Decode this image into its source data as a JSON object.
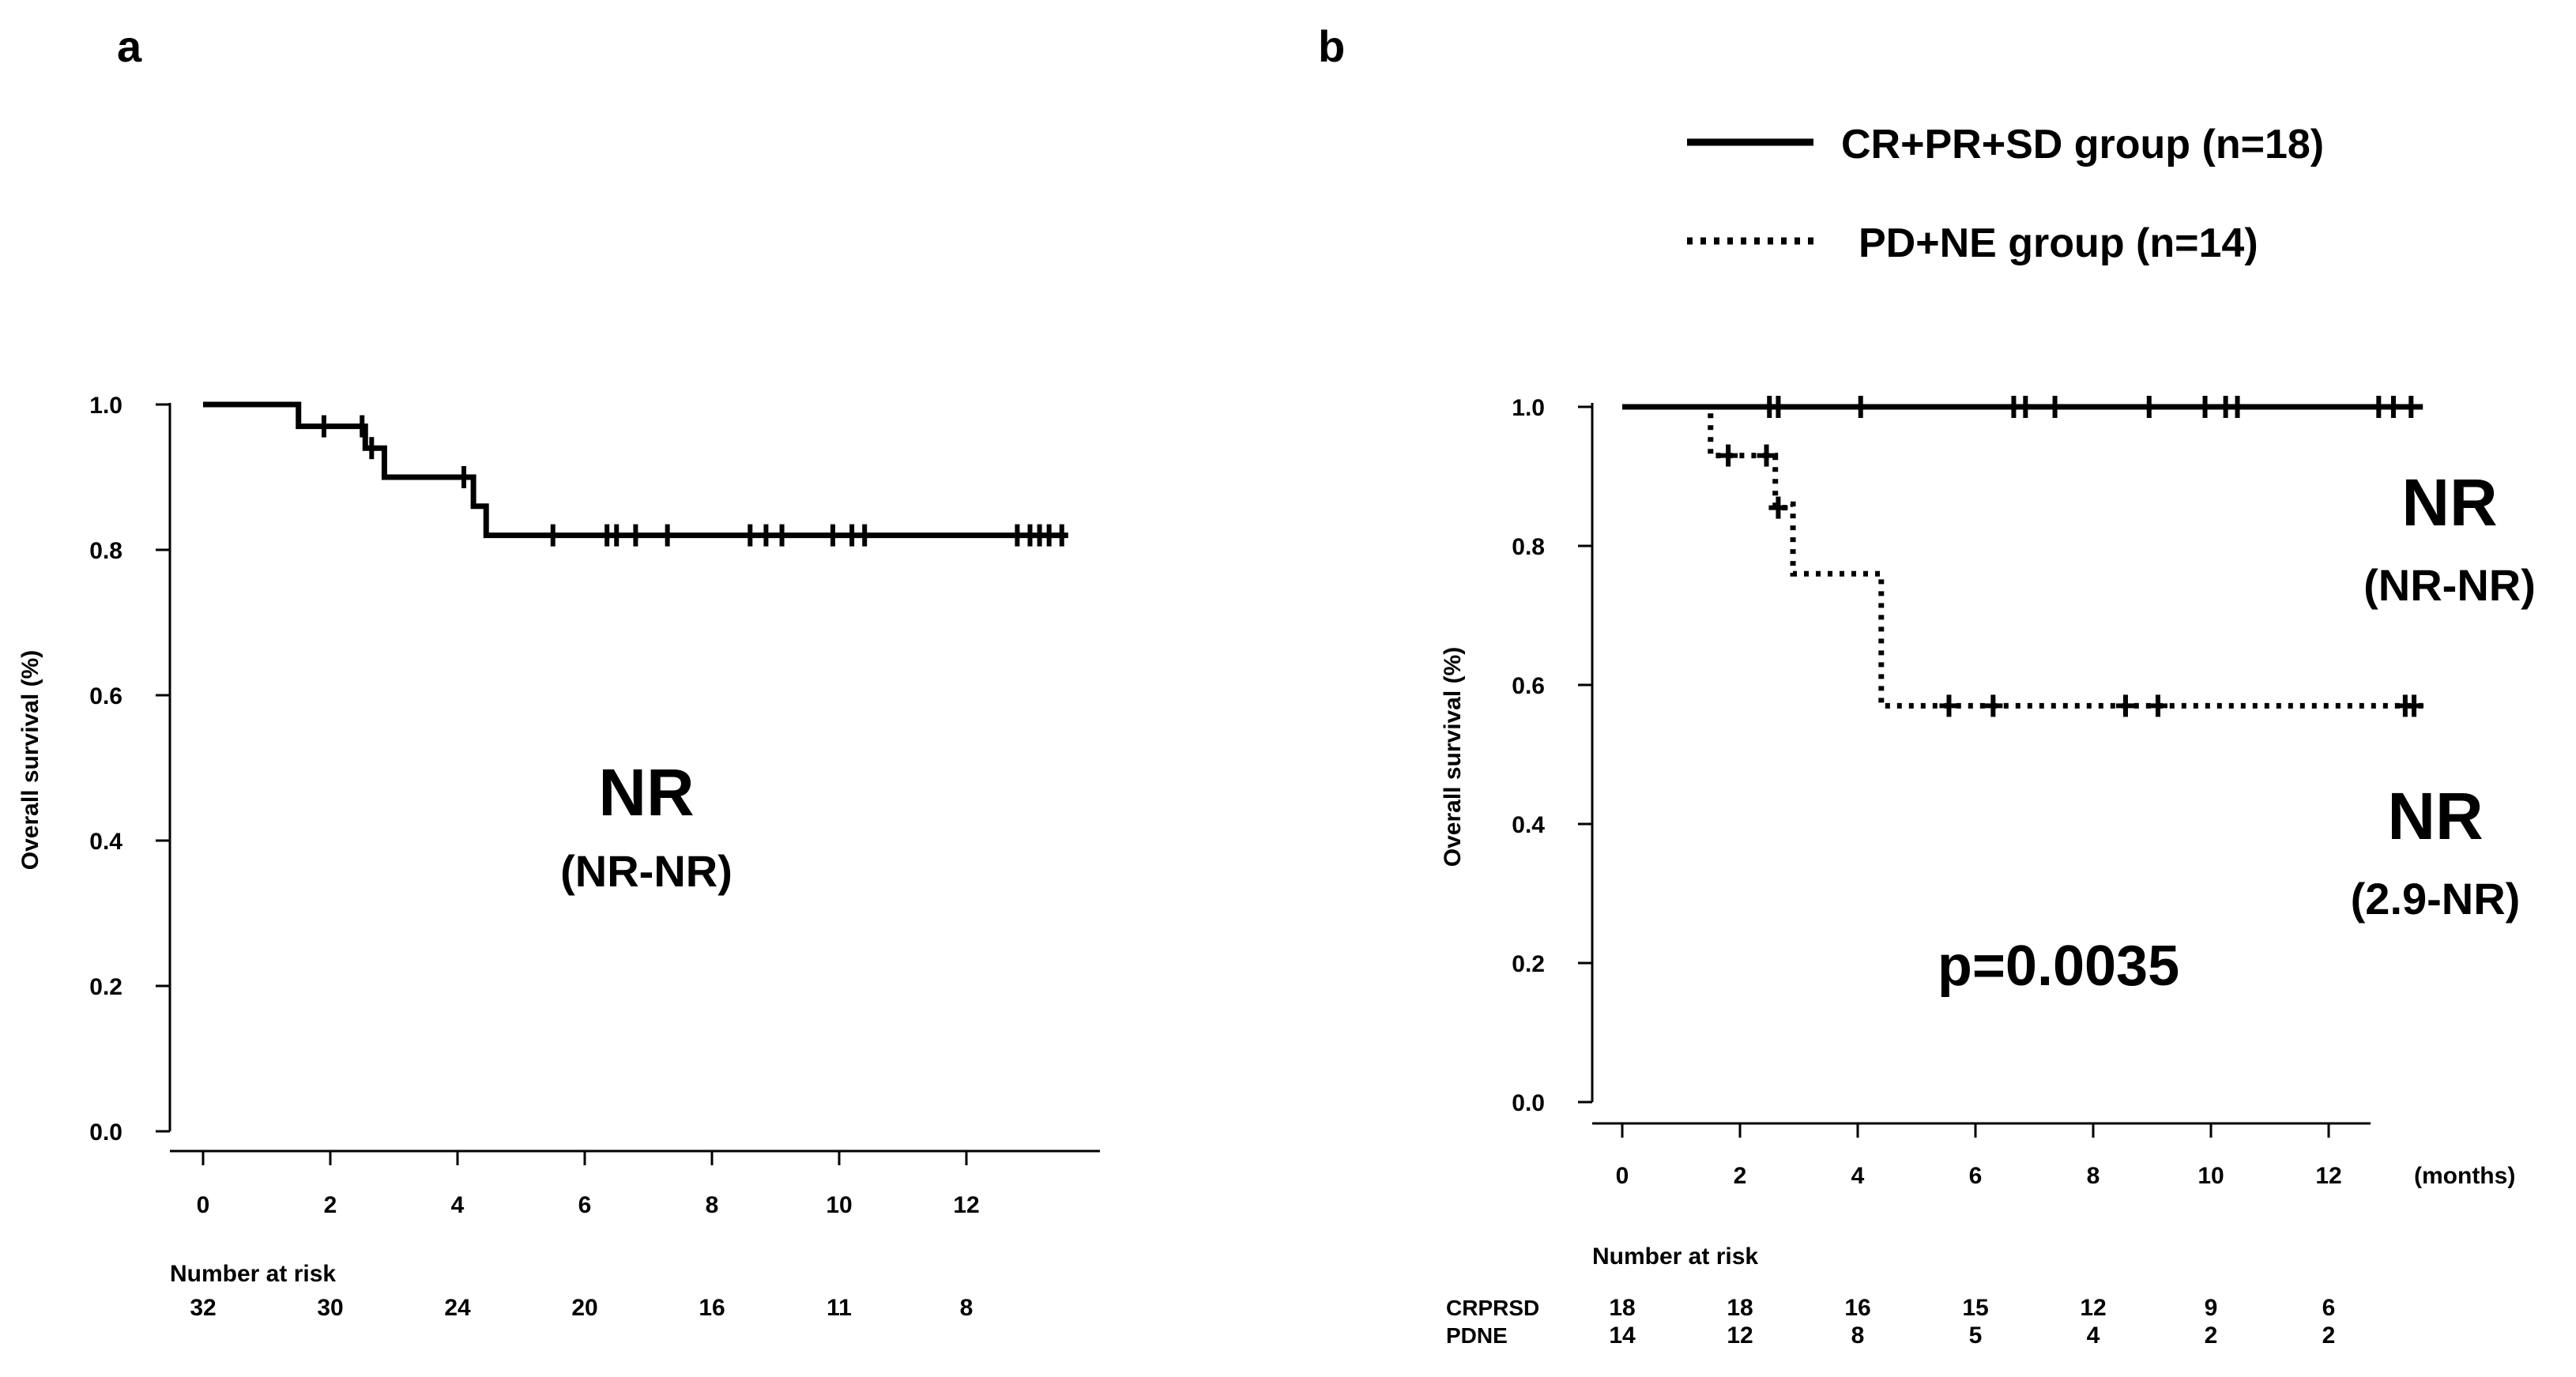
{
  "chart_data": [
    {
      "type": "line",
      "panel_label": "a",
      "ylabel": "Overall survival (%)",
      "xlabel": "",
      "xlim": [
        0,
        14
      ],
      "ylim": [
        0,
        1
      ],
      "x_ticks": [
        "0",
        "2",
        "4",
        "6",
        "8",
        "10",
        "12"
      ],
      "y_ticks": [
        "0.0",
        "0.2",
        "0.4",
        "0.6",
        "0.8",
        "1.0"
      ],
      "grid": false,
      "series": [
        {
          "line_style": "solid",
          "steps": [
            [
              0,
              1.0
            ],
            [
              1.5,
              0.97
            ],
            [
              2.55,
              0.94
            ],
            [
              2.85,
              0.9
            ],
            [
              4.25,
              0.86
            ],
            [
              4.45,
              0.82
            ],
            [
              13.6,
              0.82
            ]
          ],
          "censored": [
            [
              1.9,
              0.97
            ],
            [
              2.5,
              0.97
            ],
            [
              2.65,
              0.94
            ],
            [
              4.1,
              0.9
            ],
            [
              5.5,
              0.82
            ],
            [
              6.35,
              0.82
            ],
            [
              6.5,
              0.82
            ],
            [
              6.8,
              0.82
            ],
            [
              7.3,
              0.82
            ],
            [
              8.6,
              0.82
            ],
            [
              8.85,
              0.82
            ],
            [
              9.1,
              0.82
            ],
            [
              9.9,
              0.82
            ],
            [
              10.2,
              0.82
            ],
            [
              10.4,
              0.82
            ],
            [
              12.8,
              0.82
            ],
            [
              13.0,
              0.82
            ],
            [
              13.15,
              0.82
            ],
            [
              13.3,
              0.82
            ],
            [
              13.5,
              0.82
            ]
          ]
        }
      ],
      "annotations": [
        {
          "text": "NR",
          "size": "large"
        },
        {
          "text": "(NR-NR)",
          "size": "small"
        }
      ],
      "risk_table": {
        "title": "Number at risk",
        "rows": [
          {
            "name": "",
            "values": [
              "32",
              "30",
              "24",
              "20",
              "16",
              "11",
              "8"
            ]
          }
        ]
      }
    },
    {
      "type": "line",
      "panel_label": "b",
      "ylabel": "Overall survival (%)",
      "xlabel": "(months)",
      "xlim": [
        0,
        14
      ],
      "ylim": [
        0,
        1
      ],
      "x_ticks": [
        "0",
        "2",
        "4",
        "6",
        "8",
        "10",
        "12"
      ],
      "y_ticks": [
        "0.0",
        "0.2",
        "0.4",
        "0.6",
        "0.8",
        "1.0"
      ],
      "grid": false,
      "legend_position": "top-right",
      "series": [
        {
          "name": "CR+PR+SD group (n=18)",
          "line_style": "solid",
          "steps": [
            [
              0,
              1.0
            ],
            [
              13.6,
              1.0
            ]
          ],
          "censored": [
            [
              2.5,
              1.0
            ],
            [
              2.65,
              1.0
            ],
            [
              4.05,
              1.0
            ],
            [
              6.65,
              1.0
            ],
            [
              6.85,
              1.0
            ],
            [
              7.35,
              1.0
            ],
            [
              8.95,
              1.0
            ],
            [
              9.9,
              1.0
            ],
            [
              10.25,
              1.0
            ],
            [
              10.45,
              1.0
            ],
            [
              12.85,
              1.0
            ],
            [
              13.1,
              1.0
            ],
            [
              13.4,
              1.0
            ]
          ]
        },
        {
          "name": "PD+NE group (n=14)",
          "line_style": "dotted",
          "steps": [
            [
              0,
              1.0
            ],
            [
              1.45,
              1.0
            ],
            [
              1.5,
              0.93
            ],
            [
              2.55,
              0.93
            ],
            [
              2.6,
              0.855
            ],
            [
              2.85,
              0.86
            ],
            [
              2.9,
              0.76
            ],
            [
              4.2,
              0.76
            ],
            [
              4.4,
              0.57
            ],
            [
              13.6,
              0.57
            ]
          ],
          "censored": [
            [
              1.8,
              0.93
            ],
            [
              2.45,
              0.93
            ],
            [
              2.65,
              0.855
            ],
            [
              5.55,
              0.57
            ],
            [
              6.3,
              0.57
            ],
            [
              8.55,
              0.57
            ],
            [
              9.1,
              0.57
            ],
            [
              13.3,
              0.57
            ],
            [
              13.45,
              0.57
            ]
          ]
        }
      ],
      "annotations": [
        {
          "text": "NR",
          "size": "large",
          "group": "CR+PR+SD"
        },
        {
          "text": "(NR-NR)",
          "size": "small",
          "group": "CR+PR+SD"
        },
        {
          "text": "NR",
          "size": "large",
          "group": "PD+NE"
        },
        {
          "text": "(2.9-NR)",
          "size": "small",
          "group": "PD+NE"
        },
        {
          "text": "p=0.0035",
          "size": "medium"
        }
      ],
      "risk_table": {
        "title": "Number at risk",
        "rows": [
          {
            "name": "CRPRSD",
            "values": [
              "18",
              "18",
              "16",
              "15",
              "12",
              "9",
              "6"
            ]
          },
          {
            "name": "PDNE",
            "values": [
              "14",
              "12",
              "8",
              "5",
              "4",
              "2",
              "2"
            ]
          }
        ]
      }
    }
  ]
}
